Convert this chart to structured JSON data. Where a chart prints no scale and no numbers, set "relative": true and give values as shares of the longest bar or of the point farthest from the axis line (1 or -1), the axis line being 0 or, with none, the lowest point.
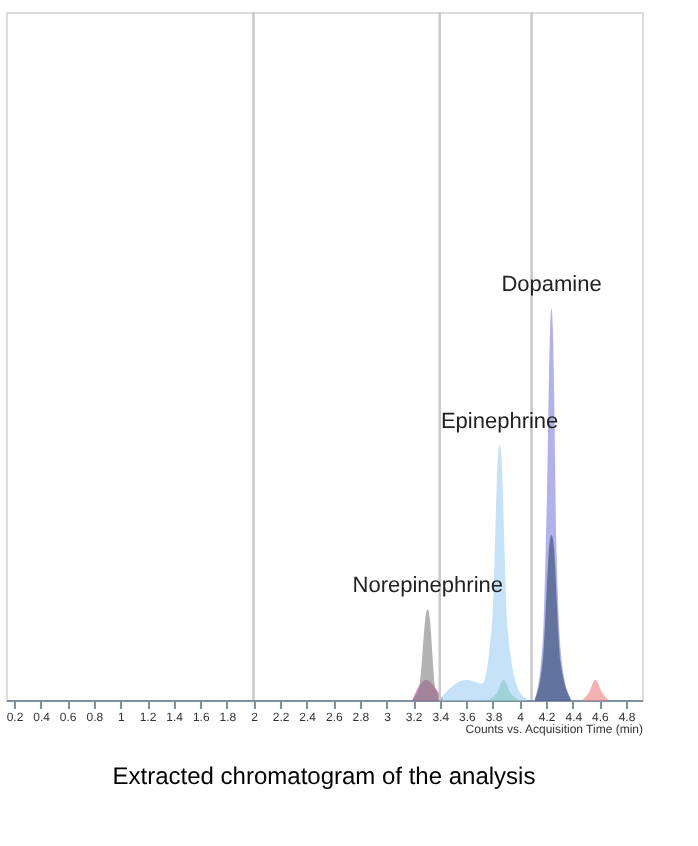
{
  "chart_data": {
    "type": "area",
    "relative": true,
    "xlabel": "Counts vs. Acquisition Time (min)",
    "xlim": [
      0.14,
      4.92
    ],
    "xticks": [
      0.2,
      0.4,
      0.6,
      0.8,
      1,
      1.2,
      1.4,
      1.6,
      1.8,
      2,
      2.2,
      2.4,
      2.6,
      2.8,
      3,
      3.2,
      3.4,
      3.6,
      3.8,
      4,
      4.2,
      4.4,
      4.6,
      4.8
    ],
    "tick_labels": "x",
    "grid": false,
    "legend": false,
    "series": [
      {
        "color": "#c040a0",
        "x": [
          3.2,
          3.26,
          3.3,
          3.36,
          3.42
        ],
        "values": [
          0,
          0.04,
          0.05,
          0.03,
          0
        ]
      },
      {
        "color": "#808080",
        "x": [
          3.2,
          3.25,
          3.31,
          3.36,
          3.42
        ],
        "values": [
          0,
          0.03,
          0.23,
          0.03,
          0
        ]
      },
      {
        "color": "#60c080",
        "x": [
          3.78,
          3.84,
          3.88,
          3.92,
          3.98
        ],
        "values": [
          0,
          0.02,
          0.05,
          0.02,
          0
        ]
      },
      {
        "color": "#9fd0f5",
        "x": [
          3.4,
          3.6,
          3.72,
          3.8,
          3.85,
          3.9,
          3.98,
          4.05
        ],
        "values": [
          0,
          0.05,
          0.04,
          0.2,
          0.65,
          0.2,
          0.03,
          0
        ]
      },
      {
        "color": "#7b7fe0",
        "x": [
          4.12,
          4.18,
          4.21,
          4.24,
          4.27,
          4.31,
          4.38
        ],
        "values": [
          0,
          0.15,
          0.5,
          1,
          0.4,
          0.1,
          0
        ]
      },
      {
        "color": "#2f4a6b",
        "x": [
          4.12,
          4.18,
          4.24,
          4.3,
          4.38
        ],
        "values": [
          0,
          0.1,
          0.42,
          0.1,
          0
        ]
      },
      {
        "color": "#f08080",
        "x": [
          4.48,
          4.53,
          4.57,
          4.61,
          4.66
        ],
        "values": [
          0,
          0.02,
          0.05,
          0.02,
          0
        ]
      }
    ],
    "ref_lines": [
      {
        "axis": "x",
        "value": 2.0,
        "color": "#c8c8c8"
      },
      {
        "axis": "x",
        "value": 3.4,
        "color": "#c8c8c8"
      },
      {
        "axis": "x",
        "value": 4.09,
        "color": "#c8c8c8"
      }
    ],
    "annotations": [
      {
        "text": "Dopamine",
        "x": 4.24,
        "y": 1
      },
      {
        "text": "Epinephrine",
        "x": 3.85,
        "y": 0.65
      },
      {
        "text": "Norepinephrine",
        "x": 3.31,
        "y": 0.23
      },
      "Extracted chromatogram of the analysis"
    ]
  }
}
